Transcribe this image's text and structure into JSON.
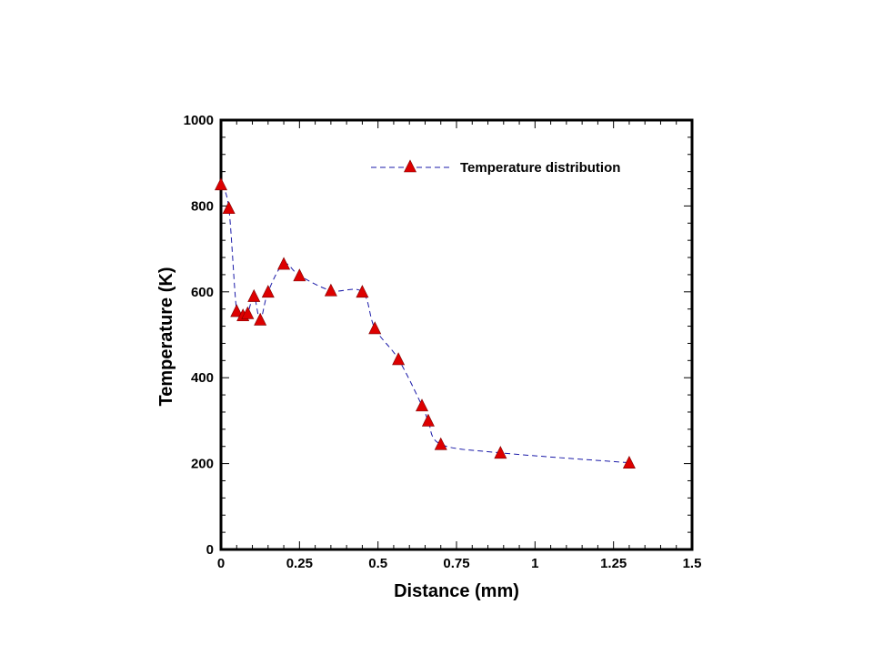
{
  "chart_data": {
    "type": "line",
    "xlabel": "Distance (mm)",
    "ylabel": "Temperature (K)",
    "xlim": [
      0,
      1.5
    ],
    "ylim": [
      0,
      1000
    ],
    "x_ticks": [
      "0",
      "0.25",
      "0.5",
      "0.75",
      "1",
      "1.25",
      "1.5"
    ],
    "x_tick_values": [
      0,
      0.25,
      0.5,
      0.75,
      1,
      1.25,
      1.5
    ],
    "y_ticks": [
      "0",
      "200",
      "400",
      "600",
      "800",
      "1000"
    ],
    "y_tick_values": [
      0,
      200,
      400,
      600,
      800,
      1000
    ],
    "grid": false,
    "legend_position": "top-right",
    "series": [
      {
        "name": "Temperature distribution",
        "line_color": "#1a1aa8",
        "line_style": "dashed",
        "marker": "triangle",
        "marker_color": "#dd0000",
        "x": [
          0.0,
          0.025,
          0.05,
          0.07,
          0.085,
          0.105,
          0.125,
          0.15,
          0.2,
          0.25,
          0.35,
          0.45,
          0.49,
          0.565,
          0.64,
          0.66,
          0.7,
          0.89,
          1.3
        ],
        "y": [
          850,
          795,
          555,
          545,
          550,
          590,
          535,
          600,
          665,
          638,
          603,
          600,
          515,
          443,
          335,
          300,
          245,
          225,
          202
        ]
      }
    ]
  }
}
